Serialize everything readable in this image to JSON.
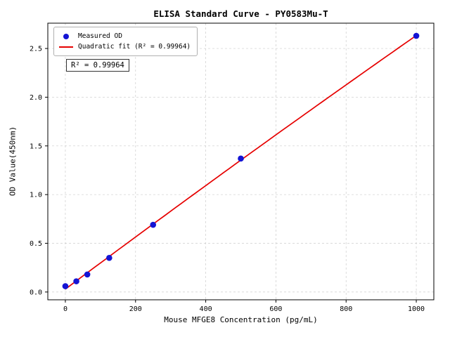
{
  "chart_data": {
    "type": "scatter",
    "title": "ELISA Standard Curve - PY0583Mu-T",
    "xlabel": "Mouse MFGE8 Concentration (pg/mL)",
    "ylabel": "OD Value(450nm)",
    "x": [
      0,
      31.25,
      62.5,
      125,
      250,
      500,
      1000
    ],
    "y": [
      0.06,
      0.11,
      0.18,
      0.35,
      0.69,
      1.37,
      2.63
    ],
    "fit": "quadratic",
    "r_squared": "0.99964",
    "annotation": "R² = 0.99964",
    "legend": [
      {
        "label": "Measured OD",
        "marker": "point",
        "color": "#1414d4"
      },
      {
        "label": "Quadratic fit (R² = 0.99964)",
        "marker": "line",
        "color": "#e60000"
      }
    ],
    "legend_position": "upper left",
    "xticks": [
      0,
      200,
      400,
      600,
      800,
      1000
    ],
    "yticks": [
      0,
      0.5,
      1,
      1.5,
      2,
      2.5
    ],
    "xlim": [
      -50,
      1050
    ],
    "ylim": [
      -0.08,
      2.76
    ],
    "grid": true,
    "colors": {
      "point": "#1414d4",
      "line": "#e60000",
      "grid": "#cccccc",
      "axis": "#000000",
      "background": "#ffffff"
    }
  }
}
